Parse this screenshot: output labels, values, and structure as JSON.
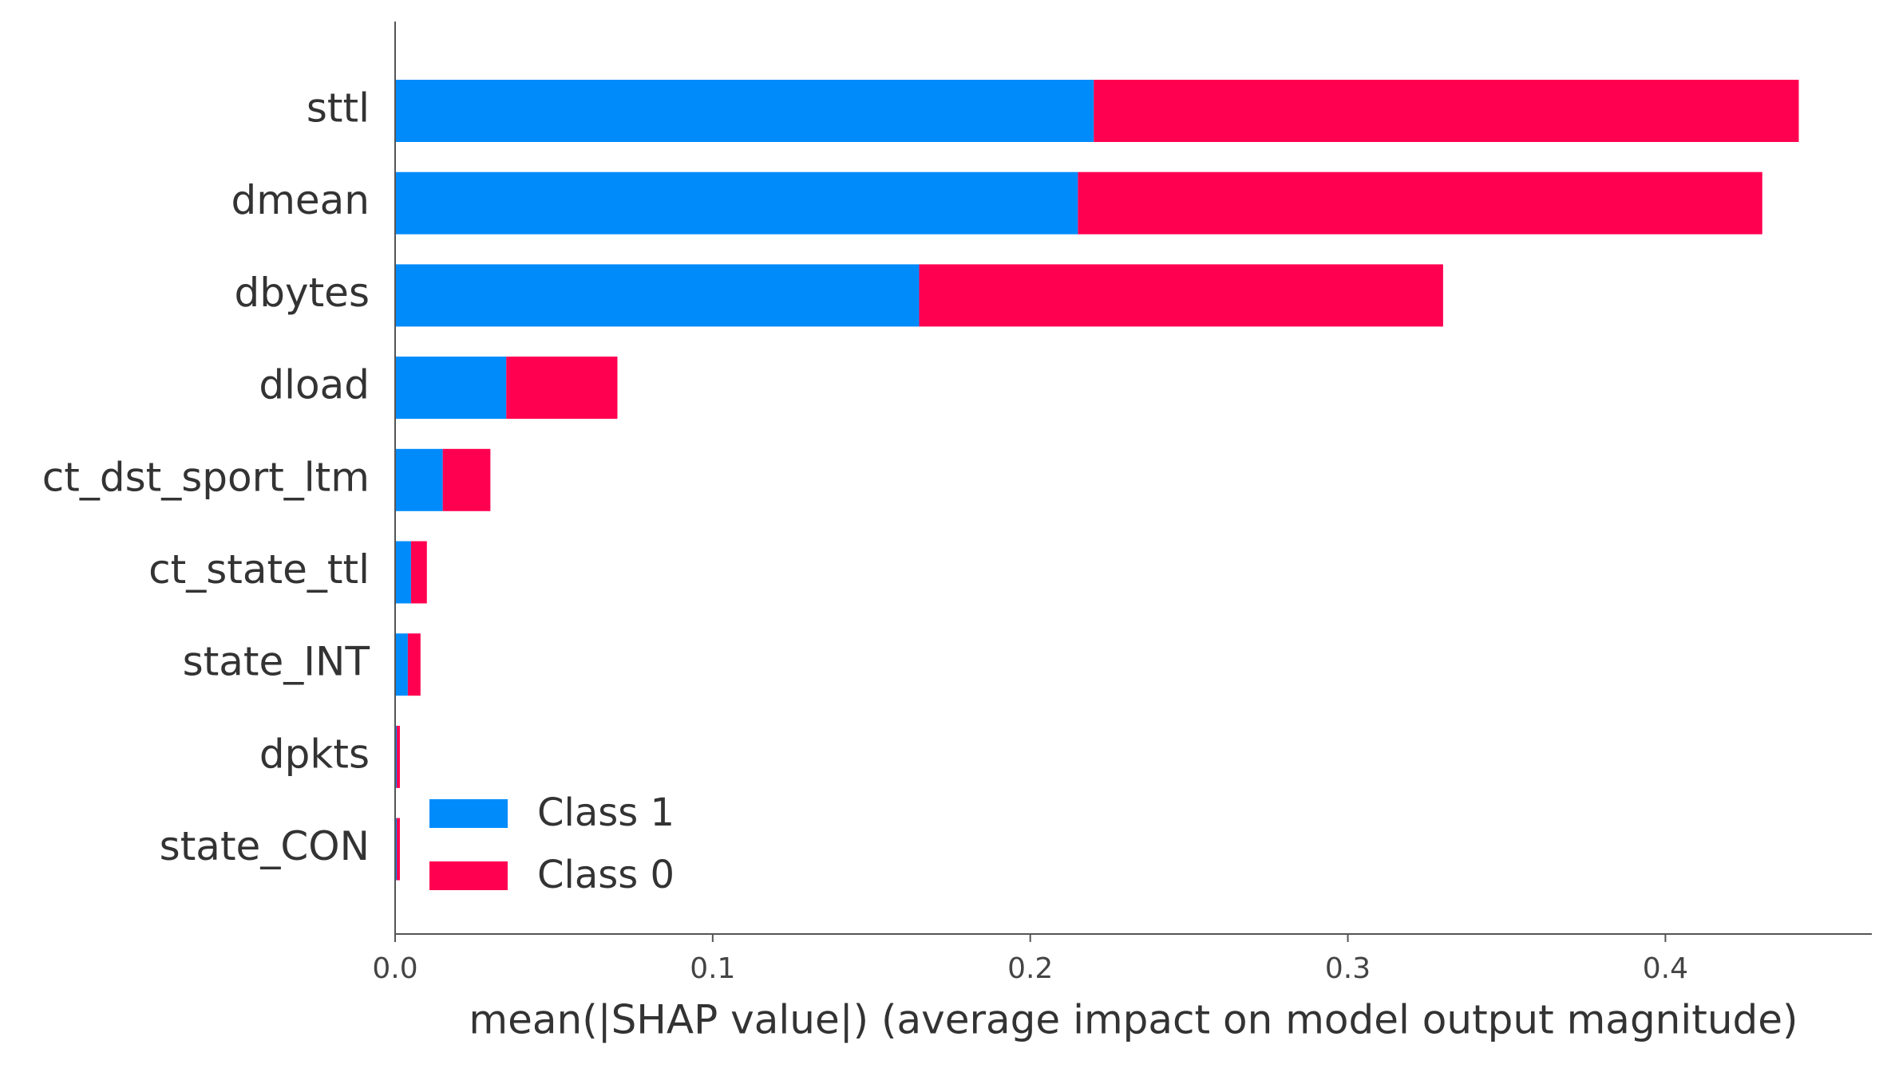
{
  "chart_data": {
    "type": "stacked_barh",
    "xlabel": "mean(|SHAP value|) (average impact on model output magnitude)",
    "categories": [
      "sttl",
      "dmean",
      "dbytes",
      "dload",
      "ct_dst_sport_ltm",
      "ct_state_ttl",
      "state_INT",
      "dpkts",
      "state_CON"
    ],
    "series": [
      {
        "name": "Class 1",
        "color": "#008bfb",
        "values": [
          0.22,
          0.215,
          0.165,
          0.035,
          0.015,
          0.005,
          0.004,
          0.0005,
          0.0005
        ]
      },
      {
        "name": "Class 0",
        "color": "#ff0051",
        "values": [
          0.222,
          0.2155,
          0.165,
          0.035,
          0.015,
          0.005,
          0.004,
          0.001,
          0.001
        ]
      }
    ],
    "xlim": [
      0,
      0.465
    ],
    "xticks": [
      {
        "value": 0,
        "label": "0.0"
      },
      0.1,
      0.2,
      0.3,
      0.4
    ],
    "legend": "lower left"
  }
}
